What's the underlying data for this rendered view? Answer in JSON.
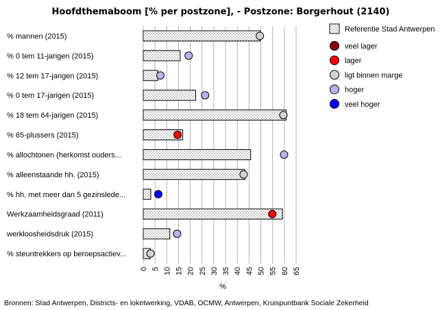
{
  "chart_data": {
    "type": "bar",
    "orientation": "horizontal",
    "title": "Hoofdthemaboom [% per postzone], - Postzone: Borgerhout (2140)",
    "xlabel": "%",
    "xlim": [
      0,
      65
    ],
    "xticks": [
      "0",
      "5",
      "10",
      "15",
      "20",
      "25",
      "30",
      "35",
      "40",
      "45",
      "50",
      "55",
      "60",
      "65"
    ],
    "grid": "vertical",
    "categories": [
      "% mannen (2015)",
      "% 0 tem 11-jarigen (2015)",
      "% 12 tem 17-jarigen (2015)",
      "% 0 tem 17-jarigen (2015)",
      "% 18 tem 64-jarigen (2015)",
      "% 65-plussers (2015)",
      "% allochtonen (herkomst ouders...",
      "% alleenstaande hh. (2015)",
      "% hh. met meer dan 5 gezinslede...",
      "Werkzaamheidsgraad (2011)",
      "werkloosheidsdruk (2015)",
      "% steuntrekkers op beroepsactiev..."
    ],
    "series": [
      {
        "name": "Referentie  Stad Antwerpen",
        "style": "bar",
        "values": [
          49.8,
          15.7,
          6.2,
          22.3,
          60.8,
          16.8,
          45.7,
          43.2,
          3.2,
          59.2,
          11.3,
          3.0
        ]
      },
      {
        "name": "Borgerhout (2140)",
        "style": "marker",
        "values": [
          49.6,
          19.3,
          7.3,
          26.3,
          59.6,
          14.6,
          59.9,
          42.7,
          6.4,
          54.9,
          14.4,
          3.1
        ],
        "categories_class": [
          "ligt binnen marge",
          "hoger",
          "hoger",
          "hoger",
          "ligt binnen marge",
          "lager",
          "hoger",
          "ligt binnen marge",
          "veel hoger",
          "lager",
          "hoger",
          "ligt binnen marge"
        ]
      }
    ],
    "legend": {
      "position": "right",
      "reference_label": "Referentie  Stad Antwerpen",
      "items": [
        {
          "label": "veel lager",
          "color": "#8b0000"
        },
        {
          "label": "lager",
          "color": "#ff0000"
        },
        {
          "label": "ligt binnen marge",
          "color": "#d3d3d3"
        },
        {
          "label": "hoger",
          "color": "#b4b4f0"
        },
        {
          "label": "veel hoger",
          "color": "#0000ff"
        }
      ]
    },
    "source": "Bronnen: Stad Antwerpen, Districts- en loketwerking, VDAB, OCMW, Antwerpen, Kruispuntbank Sociale Zekerheid"
  }
}
